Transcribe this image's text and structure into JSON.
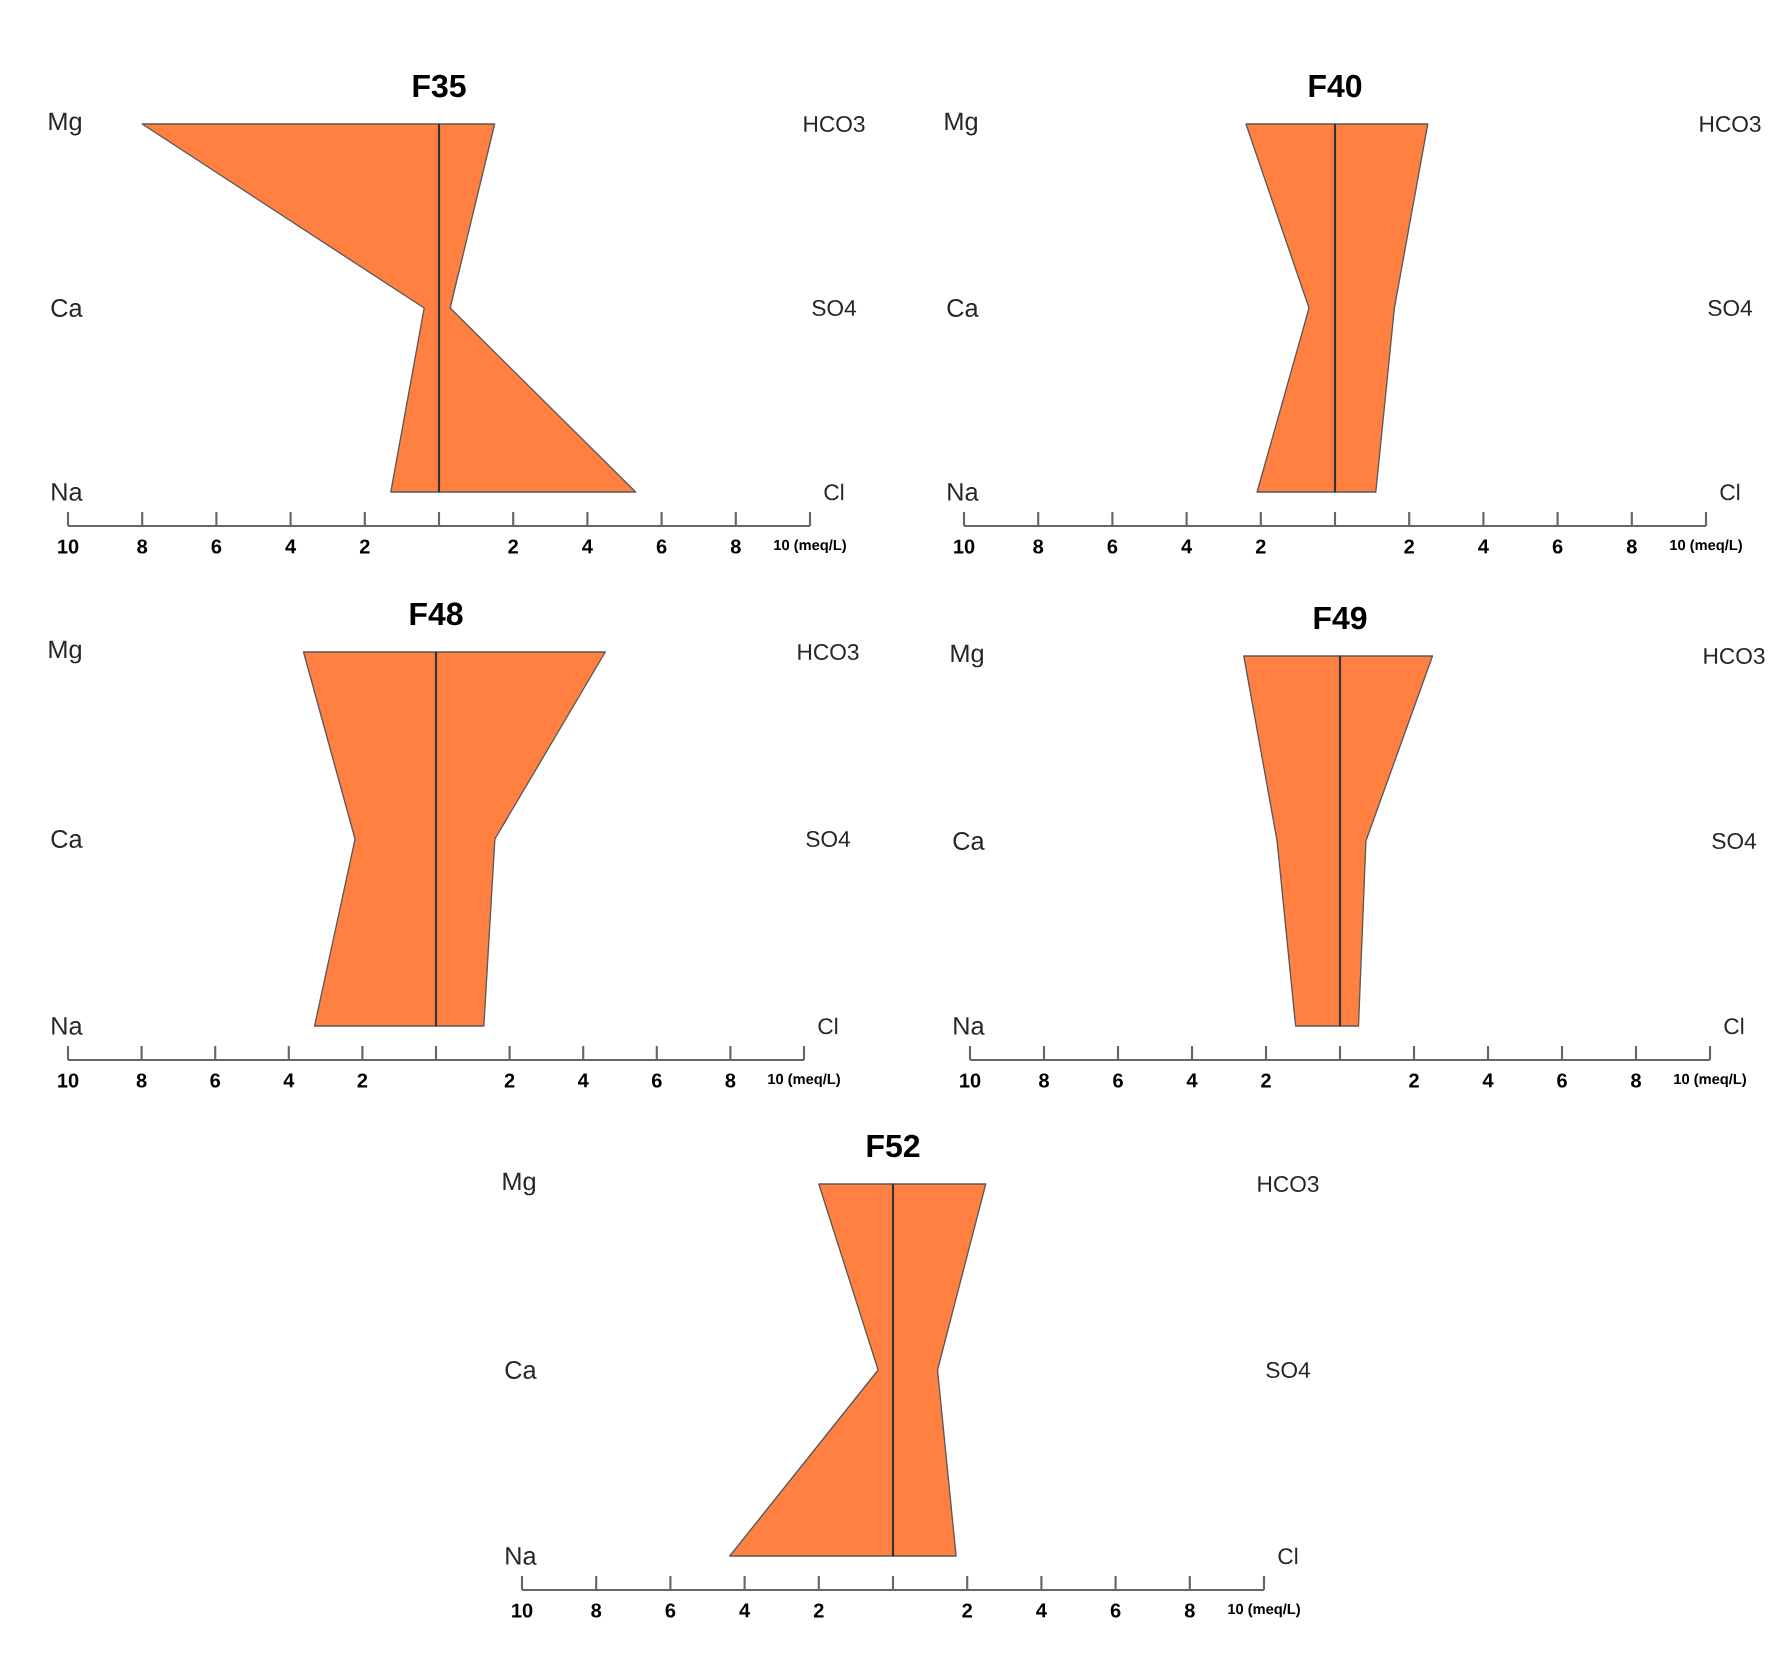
{
  "chart_data": [
    {
      "type": "area",
      "title": "F35",
      "orientation": "horizontal",
      "categories": [
        "Mg",
        "Ca",
        "Na"
      ],
      "y2_categories": [
        "HCO3",
        "SO4",
        "Cl"
      ],
      "series": [
        {
          "color": "#ff8040",
          "values": [
            -8.0,
            -0.4,
            -1.3
          ]
        },
        {
          "color": "#ff8040",
          "values": [
            1.5,
            0.3,
            5.3
          ]
        }
      ],
      "xlim": [
        -10,
        10
      ],
      "xticks": [
        {
          "value": -10,
          "label": "10"
        },
        {
          "value": -8,
          "label": "8"
        },
        {
          "value": -6,
          "label": "6"
        },
        {
          "value": -4,
          "label": "4"
        },
        {
          "value": -2,
          "label": "2"
        },
        {
          "value": 0,
          "label": null
        },
        2,
        4,
        6,
        8,
        {
          "value": 10,
          "label": "10 (meq/L)"
        }
      ],
      "ref_lines": [
        {
          "axis": "x",
          "value": 0,
          "color": "#333333"
        }
      ]
    },
    {
      "type": "area",
      "title": "F40",
      "orientation": "horizontal",
      "categories": [
        "Mg",
        "Ca",
        "Na"
      ],
      "y2_categories": [
        "HCO3",
        "SO4",
        "Cl"
      ],
      "series": [
        {
          "color": "#ff8040",
          "values": [
            -2.4,
            -0.7,
            -2.1
          ]
        },
        {
          "color": "#ff8040",
          "values": [
            2.5,
            1.6,
            1.1
          ]
        }
      ],
      "xlim": [
        -10,
        10
      ],
      "xticks": [
        {
          "value": -10,
          "label": "10"
        },
        {
          "value": -8,
          "label": "8"
        },
        {
          "value": -6,
          "label": "6"
        },
        {
          "value": -4,
          "label": "4"
        },
        {
          "value": -2,
          "label": "2"
        },
        {
          "value": 0,
          "label": null
        },
        2,
        4,
        6,
        8,
        {
          "value": 10,
          "label": "10 (meq/L)"
        }
      ],
      "ref_lines": [
        {
          "axis": "x",
          "value": 0,
          "color": "#333333"
        }
      ]
    },
    {
      "type": "area",
      "title": "F48",
      "orientation": "horizontal",
      "categories": [
        "Mg",
        "Ca",
        "Na"
      ],
      "y2_categories": [
        "HCO3",
        "SO4",
        "Cl"
      ],
      "series": [
        {
          "color": "#ff8040",
          "values": [
            -3.6,
            -2.2,
            -3.3
          ]
        },
        {
          "color": "#ff8040",
          "values": [
            4.6,
            1.6,
            1.3
          ]
        }
      ],
      "xlim": [
        -10,
        10
      ],
      "xticks": [
        {
          "value": -10,
          "label": "10"
        },
        {
          "value": -8,
          "label": "8"
        },
        {
          "value": -6,
          "label": "6"
        },
        {
          "value": -4,
          "label": "4"
        },
        {
          "value": -2,
          "label": "2"
        },
        {
          "value": 0,
          "label": null
        },
        2,
        4,
        6,
        8,
        {
          "value": 10,
          "label": "10 (meq/L)"
        }
      ],
      "ref_lines": [
        {
          "axis": "x",
          "value": 0,
          "color": "#333333"
        }
      ]
    },
    {
      "type": "area",
      "title": "F49",
      "orientation": "horizontal",
      "categories": [
        "Mg",
        "Ca",
        "Na"
      ],
      "y2_categories": [
        "HCO3",
        "SO4",
        "Cl"
      ],
      "series": [
        {
          "color": "#ff8040",
          "values": [
            -2.6,
            -1.7,
            -1.2
          ]
        },
        {
          "color": "#ff8040",
          "values": [
            2.5,
            0.7,
            0.5
          ]
        }
      ],
      "xlim": [
        -10,
        10
      ],
      "xticks": [
        {
          "value": -10,
          "label": "10"
        },
        {
          "value": -8,
          "label": "8"
        },
        {
          "value": -6,
          "label": "6"
        },
        {
          "value": -4,
          "label": "4"
        },
        {
          "value": -2,
          "label": "2"
        },
        {
          "value": 0,
          "label": null
        },
        2,
        4,
        6,
        8,
        {
          "value": 10,
          "label": "10 (meq/L)"
        }
      ],
      "ref_lines": [
        {
          "axis": "x",
          "value": 0,
          "color": "#333333"
        }
      ]
    },
    {
      "type": "area",
      "title": "F52",
      "orientation": "horizontal",
      "categories": [
        "Mg",
        "Ca",
        "Na"
      ],
      "y2_categories": [
        "HCO3",
        "SO4",
        "Cl"
      ],
      "series": [
        {
          "color": "#ff8040",
          "values": [
            -2.0,
            -0.4,
            -4.4
          ]
        },
        {
          "color": "#ff8040",
          "values": [
            2.5,
            1.2,
            1.7
          ]
        }
      ],
      "xlim": [
        -10,
        10
      ],
      "xticks": [
        {
          "value": -10,
          "label": "10"
        },
        {
          "value": -8,
          "label": "8"
        },
        {
          "value": -6,
          "label": "6"
        },
        {
          "value": -4,
          "label": "4"
        },
        {
          "value": -2,
          "label": "2"
        },
        {
          "value": 0,
          "label": null
        },
        2,
        4,
        6,
        8,
        {
          "value": 10,
          "label": "10 (meq/L)"
        }
      ],
      "ref_lines": [
        {
          "axis": "x",
          "value": 0,
          "color": "#333333"
        }
      ]
    }
  ]
}
